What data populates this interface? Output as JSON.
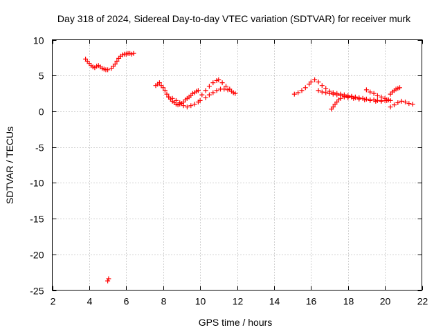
{
  "chart_data": {
    "type": "scatter",
    "title": "Day 318 of 2024, Sidereal Day-to-day VTEC variation (SDTVAR) for receiver murk",
    "xlabel": "GPS time / hours",
    "ylabel": "SDTVAR / TECUs",
    "xlim": [
      2,
      22
    ],
    "ylim": [
      -25,
      10
    ],
    "x_ticks": [
      2,
      4,
      6,
      8,
      10,
      12,
      14,
      16,
      18,
      20,
      22
    ],
    "y_ticks": [
      10,
      5,
      0,
      -5,
      -10,
      -15,
      -20,
      -25
    ],
    "grid": true,
    "marker": "plus",
    "color": "#ff0000",
    "series": [
      {
        "name": "SDTVAR",
        "x": [
          3.8,
          3.9,
          4.0,
          4.1,
          4.2,
          4.3,
          4.4,
          4.5,
          4.6,
          4.7,
          4.8,
          4.9,
          5.0,
          5.05,
          5.2,
          5.3,
          5.4,
          5.5,
          5.6,
          5.7,
          5.8,
          5.9,
          6.0,
          6.1,
          6.2,
          6.3,
          6.4,
          5.0,
          7.6,
          7.7,
          7.8,
          7.9,
          8.0,
          8.1,
          8.2,
          8.3,
          8.4,
          8.5,
          8.6,
          8.7,
          8.8,
          8.9,
          9.0,
          9.1,
          9.2,
          9.3,
          9.4,
          9.5,
          9.6,
          9.7,
          9.8,
          9.9,
          8.3,
          8.5,
          8.7,
          8.9,
          9.1,
          9.3,
          9.5,
          9.7,
          9.9,
          10.0,
          10.1,
          10.3,
          10.5,
          10.7,
          10.9,
          11.0,
          11.2,
          11.4,
          11.6,
          11.8,
          10.3,
          10.5,
          10.7,
          10.9,
          11.1,
          11.3,
          11.5,
          11.7,
          11.9,
          15.1,
          15.3,
          15.5,
          15.7,
          15.9,
          16.0,
          16.2,
          16.4,
          16.6,
          16.8,
          17.0,
          17.2,
          17.4,
          17.6,
          17.8,
          18.0,
          18.2,
          18.4,
          18.6,
          16.4,
          16.6,
          16.8,
          17.0,
          17.2,
          17.4,
          17.6,
          17.8,
          18.0,
          18.2,
          17.1,
          17.2,
          17.3,
          17.4,
          17.5,
          17.6,
          17.8,
          18.0,
          18.2,
          18.4,
          18.6,
          18.8,
          19.0,
          19.2,
          19.4,
          19.6,
          19.8,
          20.0,
          20.2,
          18.0,
          18.3,
          18.6,
          18.9,
          19.2,
          19.5,
          19.8,
          20.1,
          20.3,
          19.0,
          19.2,
          19.4,
          19.6,
          19.8,
          20.0,
          20.1,
          20.3,
          20.4,
          20.5,
          20.6,
          20.7,
          20.8,
          20.3,
          20.5,
          20.7,
          20.9,
          21.1,
          21.3,
          21.5
        ],
        "y": [
          7.3,
          7.0,
          6.7,
          6.4,
          6.2,
          6.1,
          6.3,
          6.4,
          6.2,
          6.0,
          5.9,
          5.8,
          5.8,
          -23.4,
          6.0,
          6.3,
          6.6,
          7.0,
          7.4,
          7.7,
          7.9,
          8.0,
          8.0,
          8.1,
          8.1,
          8.0,
          8.1,
          -23.7,
          3.6,
          3.8,
          4.0,
          3.6,
          3.3,
          2.9,
          2.4,
          2.0,
          1.7,
          1.4,
          1.2,
          1.0,
          0.9,
          1.0,
          1.1,
          1.3,
          1.6,
          1.8,
          2.0,
          2.2,
          2.5,
          2.6,
          2.8,
          2.9,
          2.0,
          1.8,
          1.5,
          1.2,
          0.8,
          0.6,
          0.8,
          1.0,
          1.3,
          1.5,
          2.3,
          2.9,
          3.5,
          4.0,
          4.3,
          4.4,
          4.0,
          3.5,
          3.1,
          2.6,
          1.9,
          2.3,
          2.6,
          2.9,
          3.1,
          3.1,
          3.0,
          2.8,
          2.5,
          2.4,
          2.6,
          2.9,
          3.3,
          3.8,
          4.1,
          4.4,
          4.1,
          3.6,
          3.2,
          2.8,
          2.6,
          2.5,
          2.4,
          2.3,
          2.2,
          2.0,
          1.9,
          1.8,
          2.9,
          2.7,
          2.6,
          2.5,
          2.4,
          2.3,
          2.2,
          2.1,
          2.0,
          2.0,
          0.3,
          0.6,
          1.0,
          1.3,
          1.6,
          1.8,
          2.0,
          2.1,
          2.1,
          2.0,
          1.9,
          1.8,
          1.7,
          1.6,
          1.6,
          1.5,
          1.5,
          1.5,
          1.6,
          1.9,
          1.8,
          1.7,
          1.6,
          1.5,
          1.4,
          1.4,
          1.5,
          1.5,
          3.0,
          2.7,
          2.5,
          2.2,
          2.0,
          1.8,
          1.6,
          2.4,
          2.7,
          2.9,
          3.1,
          3.2,
          3.3,
          0.6,
          0.9,
          1.2,
          1.4,
          1.3,
          1.1,
          1.0
        ]
      }
    ]
  }
}
